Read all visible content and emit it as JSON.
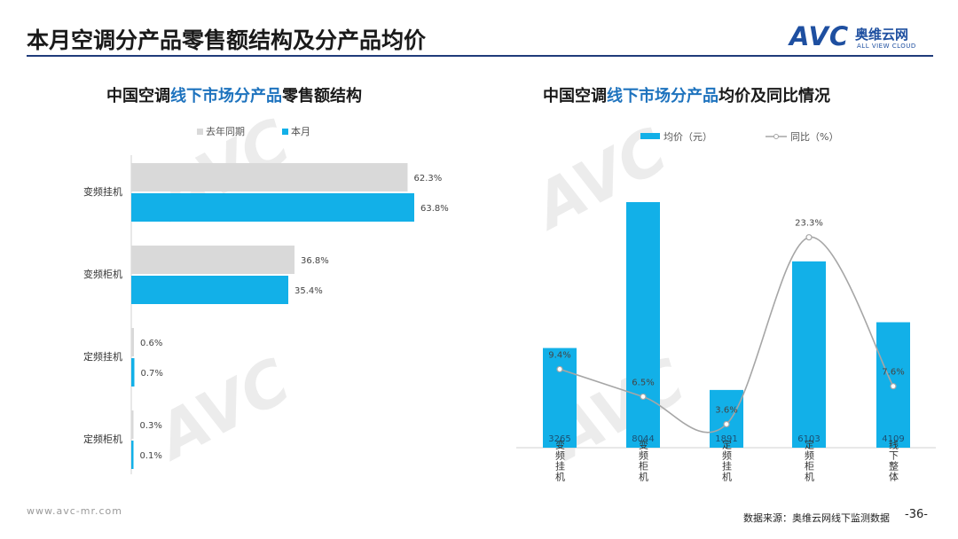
{
  "header": {
    "title": "本月空调分产品零售额结构及分产品均价",
    "logo_text": "AVC",
    "logo_cn": "奥维云网",
    "logo_en": "ALL VIEW CLOUD"
  },
  "left_chart": {
    "title_prefix": "中国空调",
    "title_highlight": "线下市场分产品",
    "title_suffix": "零售额结构"
  },
  "right_chart": {
    "title_prefix": "中国空调",
    "title_highlight": "线下市场分产品",
    "title_suffix": "均价及同比情况"
  },
  "footer": {
    "url": "www.avc-mr.com",
    "source": "数据来源：奥维云网线下监测数据",
    "page": "-36-"
  },
  "watermark": {
    "text": "AVC",
    "sub": "ALL VIEW CLOUD",
    "cn": "奥维云网"
  },
  "colors": {
    "last_year": "#d9d9d9",
    "this_month": "#12b0e8",
    "line": "#a6a6a6"
  },
  "chart_data": [
    {
      "type": "bar",
      "orientation": "horizontal",
      "categories": [
        "变频挂机",
        "变频柜机",
        "定频挂机",
        "定频柜机"
      ],
      "series": [
        {
          "name": "去年同期",
          "values": [
            62.3,
            36.8,
            0.6,
            0.3
          ],
          "labels": [
            "62.3%",
            "36.8%",
            "0.6%",
            "0.3%"
          ]
        },
        {
          "name": "本月",
          "values": [
            63.8,
            35.4,
            0.7,
            0.1
          ],
          "labels": [
            "63.8%",
            "35.4%",
            "0.7%",
            "0.1%"
          ]
        }
      ],
      "legend_position": "top",
      "grid": false
    },
    {
      "type": "bar+line",
      "categories": [
        "变频挂机",
        "变频柜机",
        "定频挂机",
        "定频柜机",
        "线下整体"
      ],
      "bar_series": {
        "name": "均价（元）",
        "values": [
          3265,
          8044,
          1891,
          6103,
          4109
        ],
        "labels": [
          "3265",
          "8044",
          "1891",
          "6103",
          "4109"
        ]
      },
      "line_series": {
        "name": "同比（%）",
        "values": [
          9.4,
          6.5,
          3.6,
          23.3,
          7.6
        ],
        "labels": [
          "9.4%",
          "6.5%",
          "3.6%",
          "23.3%",
          "7.6%"
        ]
      },
      "legend_position": "top",
      "grid": false
    }
  ]
}
